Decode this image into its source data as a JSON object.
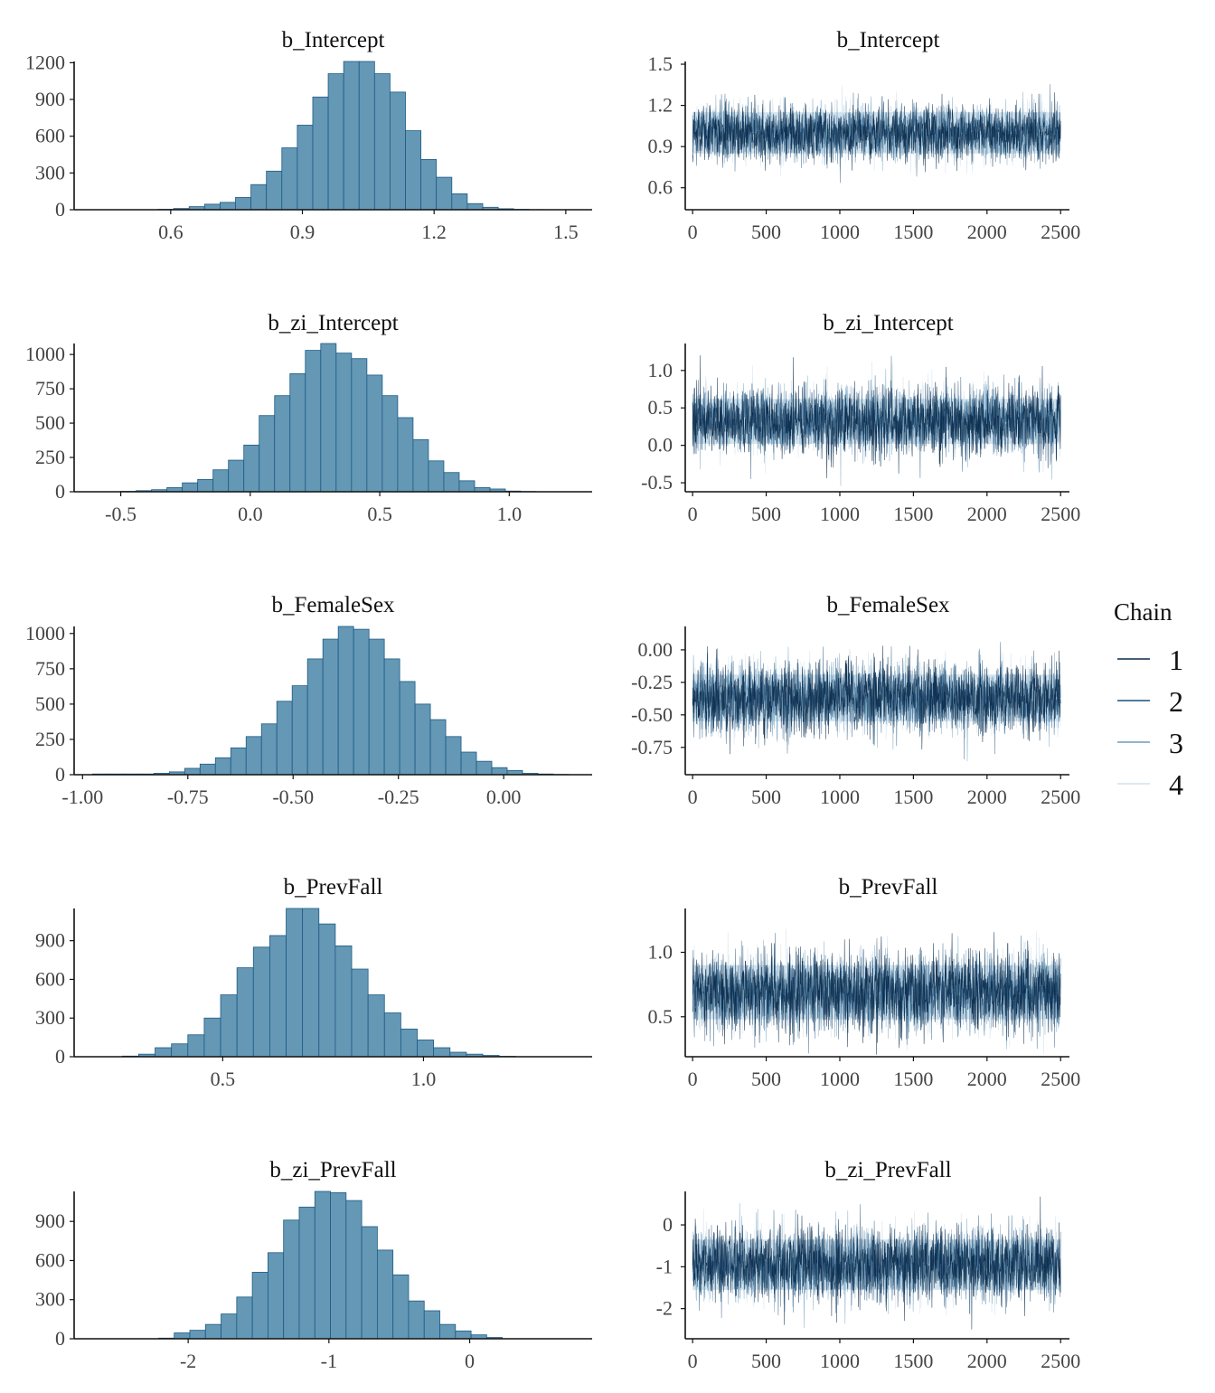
{
  "colors": {
    "hist_fill": "#6498b5",
    "hist_stroke": "#1d5a85",
    "axis": "#111111",
    "chain_colors": [
      "#0a2a4a",
      "#1d4f78",
      "#6a9cbd",
      "#d1e1ec"
    ]
  },
  "legend": {
    "title": "Chain",
    "labels": [
      "1",
      "2",
      "3",
      "4"
    ],
    "placement": "right"
  },
  "chart_data": [
    {
      "type": "bar",
      "title": "b_Intercept",
      "xlim": [
        0.38,
        1.56
      ],
      "ylim": [
        0,
        1210
      ],
      "xticks": [
        0.6,
        0.9,
        1.2,
        1.5
      ],
      "xtick_labels": [
        "0.6",
        "0.9",
        "1.2",
        "1.5"
      ],
      "yticks": [
        0,
        300,
        600,
        900,
        1200
      ],
      "ytick_labels": [
        "0",
        "300",
        "600",
        "900",
        "1200"
      ],
      "bin_start": 0.5716,
      "bin_width": 0.0352,
      "values": [
        3,
        10,
        25,
        45,
        60,
        100,
        205,
        315,
        505,
        690,
        920,
        1110,
        1210,
        1210,
        1110,
        960,
        645,
        410,
        265,
        130,
        50,
        20,
        8,
        3,
        1
      ]
    },
    {
      "type": "line",
      "title": "b_Intercept",
      "xlim": [
        -50,
        2560
      ],
      "ylim": [
        0.44,
        1.52
      ],
      "xticks": [
        0,
        500,
        1000,
        1500,
        2000,
        2500
      ],
      "xtick_labels": [
        "0",
        "500",
        "1000",
        "1500",
        "2000",
        "2500"
      ],
      "yticks": [
        0.6,
        0.9,
        1.2,
        1.5
      ],
      "ytick_labels": [
        "0.6",
        "0.9",
        "1.2",
        "1.5"
      ],
      "iterations": 2500,
      "mean": 1.0,
      "sd": 0.1,
      "band": [
        0.85,
        1.15
      ],
      "range": [
        0.48,
        1.5
      ],
      "series": [
        {
          "name": "1"
        },
        {
          "name": "2"
        },
        {
          "name": "3"
        },
        {
          "name": "4"
        }
      ]
    },
    {
      "type": "bar",
      "title": "b_zi_Intercept",
      "xlim": [
        -0.68,
        1.32
      ],
      "ylim": [
        0,
        1080
      ],
      "xticks": [
        -0.5,
        0.0,
        0.5,
        1.0
      ],
      "xtick_labels": [
        "-0.5",
        "0.0",
        "0.5",
        "1.0"
      ],
      "yticks": [
        0,
        250,
        500,
        750,
        1000
      ],
      "ytick_labels": [
        "0",
        "250",
        "500",
        "750",
        "1000"
      ],
      "bin_start": -0.5,
      "bin_width": 0.0594,
      "values": [
        3,
        8,
        15,
        30,
        65,
        90,
        160,
        230,
        340,
        555,
        700,
        860,
        1030,
        1080,
        1010,
        970,
        850,
        700,
        540,
        380,
        225,
        140,
        80,
        30,
        20,
        5,
        2
      ]
    },
    {
      "type": "line",
      "title": "b_zi_Intercept",
      "xlim": [
        -50,
        2560
      ],
      "ylim": [
        -0.62,
        1.36
      ],
      "xticks": [
        0,
        500,
        1000,
        1500,
        2000,
        2500
      ],
      "xtick_labels": [
        "0",
        "500",
        "1000",
        "1500",
        "2000",
        "2500"
      ],
      "yticks": [
        -0.5,
        0.0,
        0.5,
        1.0
      ],
      "ytick_labels": [
        "-0.5",
        "0.0",
        "0.5",
        "1.0"
      ],
      "iterations": 2500,
      "mean": 0.33,
      "sd": 0.22,
      "band": [
        0.02,
        0.62
      ],
      "range": [
        -0.55,
        1.25
      ],
      "series": [
        {
          "name": "1"
        },
        {
          "name": "2"
        },
        {
          "name": "3"
        },
        {
          "name": "4"
        }
      ]
    },
    {
      "type": "bar",
      "title": "b_FemaleSex",
      "xlim": [
        -1.02,
        0.21
      ],
      "ylim": [
        0,
        1050
      ],
      "xticks": [
        -1.0,
        -0.75,
        -0.5,
        -0.25,
        0.0
      ],
      "xtick_labels": [
        "-1.00",
        "-0.75",
        "-0.50",
        "-0.25",
        "0.00"
      ],
      "yticks": [
        0,
        250,
        500,
        750,
        1000
      ],
      "ytick_labels": [
        "0",
        "250",
        "500",
        "750",
        "1000"
      ],
      "bin_start": -0.9762,
      "bin_width": 0.03646,
      "values": [
        5,
        5,
        5,
        5,
        10,
        20,
        45,
        75,
        120,
        190,
        270,
        360,
        520,
        630,
        820,
        960,
        1050,
        1030,
        960,
        820,
        660,
        500,
        390,
        270,
        160,
        95,
        50,
        30,
        10,
        5,
        2
      ]
    },
    {
      "type": "line",
      "title": "b_FemaleSex",
      "xlim": [
        -50,
        2560
      ],
      "ylim": [
        -0.96,
        0.18
      ],
      "xticks": [
        0,
        500,
        1000,
        1500,
        2000,
        2500
      ],
      "xtick_labels": [
        "0",
        "500",
        "1000",
        "1500",
        "2000",
        "2500"
      ],
      "yticks": [
        0.0,
        -0.25,
        -0.5,
        -0.75
      ],
      "ytick_labels": [
        "0.00",
        "-0.25",
        "-0.50",
        "-0.75"
      ],
      "iterations": 2500,
      "mean": -0.37,
      "sd": 0.13,
      "band": [
        -0.55,
        -0.19
      ],
      "range": [
        -0.93,
        0.13
      ],
      "series": [
        {
          "name": "1"
        },
        {
          "name": "2"
        },
        {
          "name": "3"
        },
        {
          "name": "4"
        }
      ]
    },
    {
      "type": "bar",
      "title": "b_PrevFall",
      "xlim": [
        0.13,
        1.42
      ],
      "ylim": [
        0,
        1150
      ],
      "xticks": [
        0.5,
        1.0
      ],
      "xtick_labels": [
        "0.5",
        "1.0"
      ],
      "yticks": [
        0,
        300,
        600,
        900
      ],
      "ytick_labels": [
        "0",
        "300",
        "600",
        "900"
      ],
      "bin_start": 0.25,
      "bin_width": 0.0408,
      "values": [
        5,
        20,
        70,
        100,
        170,
        300,
        480,
        690,
        850,
        940,
        1150,
        1150,
        1030,
        860,
        680,
        480,
        340,
        215,
        130,
        70,
        35,
        20,
        10,
        3
      ]
    },
    {
      "type": "line",
      "title": "b_PrevFall",
      "xlim": [
        -50,
        2560
      ],
      "ylim": [
        0.19,
        1.34
      ],
      "xticks": [
        0,
        500,
        1000,
        1500,
        2000,
        2500
      ],
      "xtick_labels": [
        "0",
        "500",
        "1000",
        "1500",
        "2000",
        "2500"
      ],
      "yticks": [
        0.5,
        1.0
      ],
      "ytick_labels": [
        "0.5",
        "1.0"
      ],
      "iterations": 2500,
      "mean": 0.69,
      "sd": 0.15,
      "band": [
        0.48,
        0.9
      ],
      "range": [
        0.2,
        1.3
      ],
      "series": [
        {
          "name": "1"
        },
        {
          "name": "2"
        },
        {
          "name": "3"
        },
        {
          "name": "4"
        }
      ]
    },
    {
      "type": "bar",
      "title": "b_zi_PrevFall",
      "xlim": [
        -2.81,
        0.87
      ],
      "ylim": [
        0,
        1130
      ],
      "xticks": [
        -2,
        -1,
        0
      ],
      "xtick_labels": [
        "-2",
        "-1",
        "0"
      ],
      "yticks": [
        0,
        300,
        600,
        900
      ],
      "ytick_labels": [
        "0",
        "300",
        "600",
        "900"
      ],
      "bin_start": -2.21,
      "bin_width": 0.111,
      "values": [
        5,
        45,
        65,
        110,
        190,
        320,
        510,
        660,
        910,
        1010,
        1130,
        1120,
        1060,
        860,
        680,
        490,
        290,
        215,
        110,
        60,
        30,
        10
      ]
    },
    {
      "type": "line",
      "title": "b_zi_PrevFall",
      "xlim": [
        -50,
        2560
      ],
      "ylim": [
        -2.72,
        0.8
      ],
      "xticks": [
        0,
        500,
        1000,
        1500,
        2000,
        2500
      ],
      "xtick_labels": [
        "0",
        "500",
        "1000",
        "1500",
        "2000",
        "2500"
      ],
      "yticks": [
        0,
        -1,
        -2
      ],
      "ytick_labels": [
        "0",
        "-1",
        "-2"
      ],
      "iterations": 2500,
      "mean": -0.95,
      "sd": 0.42,
      "band": [
        -1.55,
        -0.35
      ],
      "range": [
        -2.5,
        0.7
      ],
      "series": [
        {
          "name": "1"
        },
        {
          "name": "2"
        },
        {
          "name": "3"
        },
        {
          "name": "4"
        }
      ]
    }
  ]
}
